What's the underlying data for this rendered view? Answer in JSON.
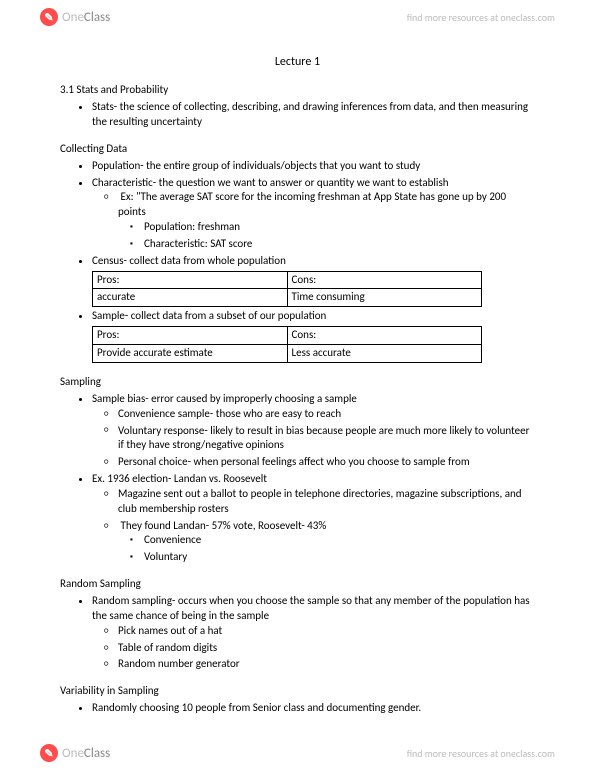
{
  "brand": {
    "icon_glyph": "✎",
    "name_one": "One",
    "name_class": "Class",
    "tagline": "find more resources at oneclass.com"
  },
  "title": "Lecture 1",
  "s1": {
    "heading": "3.1 Stats and Probability",
    "stats_def": "Stats- the science of collecting, describing, and drawing inferences from data, and then measuring the resulting uncertainty"
  },
  "collecting": {
    "heading": "Collecting Data",
    "population": "Population- the entire group of individuals/objects that you want to study",
    "characteristic": "Characteristic- the question we want to answer or quantity we want to establish",
    "ex_intro": "Ex: \"The average SAT score for the incoming freshman at App State has gone up by 200 points",
    "ex_pop": "Population: freshman",
    "ex_char": "Characteristic: SAT score",
    "census_label": "Census- collect data from whole population",
    "census_table": {
      "pros_h": "Pros:",
      "cons_h": "Cons:",
      "pros_v": "accurate",
      "cons_v": "Time consuming"
    },
    "sample_label": "Sample- collect data from a subset of our population",
    "sample_table": {
      "pros_h": "Pros:",
      "cons_h": "Cons:",
      "pros_v": "Provide accurate estimate",
      "cons_v": "Less accurate"
    }
  },
  "sampling": {
    "heading": "Sampling",
    "bias": "Sample bias- error caused by improperly choosing a sample",
    "conv": "Convenience sample- those who are easy to reach",
    "vol": "Voluntary response- likely to result in bias because people are much more likely to volunteer if they have strong/negative opinions",
    "pers": "Personal choice- when personal feelings affect who you choose to sample from",
    "ex_label": "Ex. 1936 election- Landan vs. Roosevelt",
    "ex_mag": "Magazine sent out a ballot to people in telephone directories, magazine subscriptions, and club membership rosters",
    "ex_result": "They found Landan- 57% vote, Roosevelt- 43%",
    "ex_conv": "Convenience",
    "ex_vol": "Voluntary"
  },
  "random": {
    "heading": "Random Sampling",
    "def": "Random sampling- occurs when you choose the sample so that any member of the population has the same chance of being in the sample",
    "m1": "Pick names out of a hat",
    "m2": "Table of random digits",
    "m3": "Random number generator"
  },
  "variability": {
    "heading": "Variability in Sampling",
    "item": "Randomly choosing 10 people from Senior class and documenting gender."
  }
}
